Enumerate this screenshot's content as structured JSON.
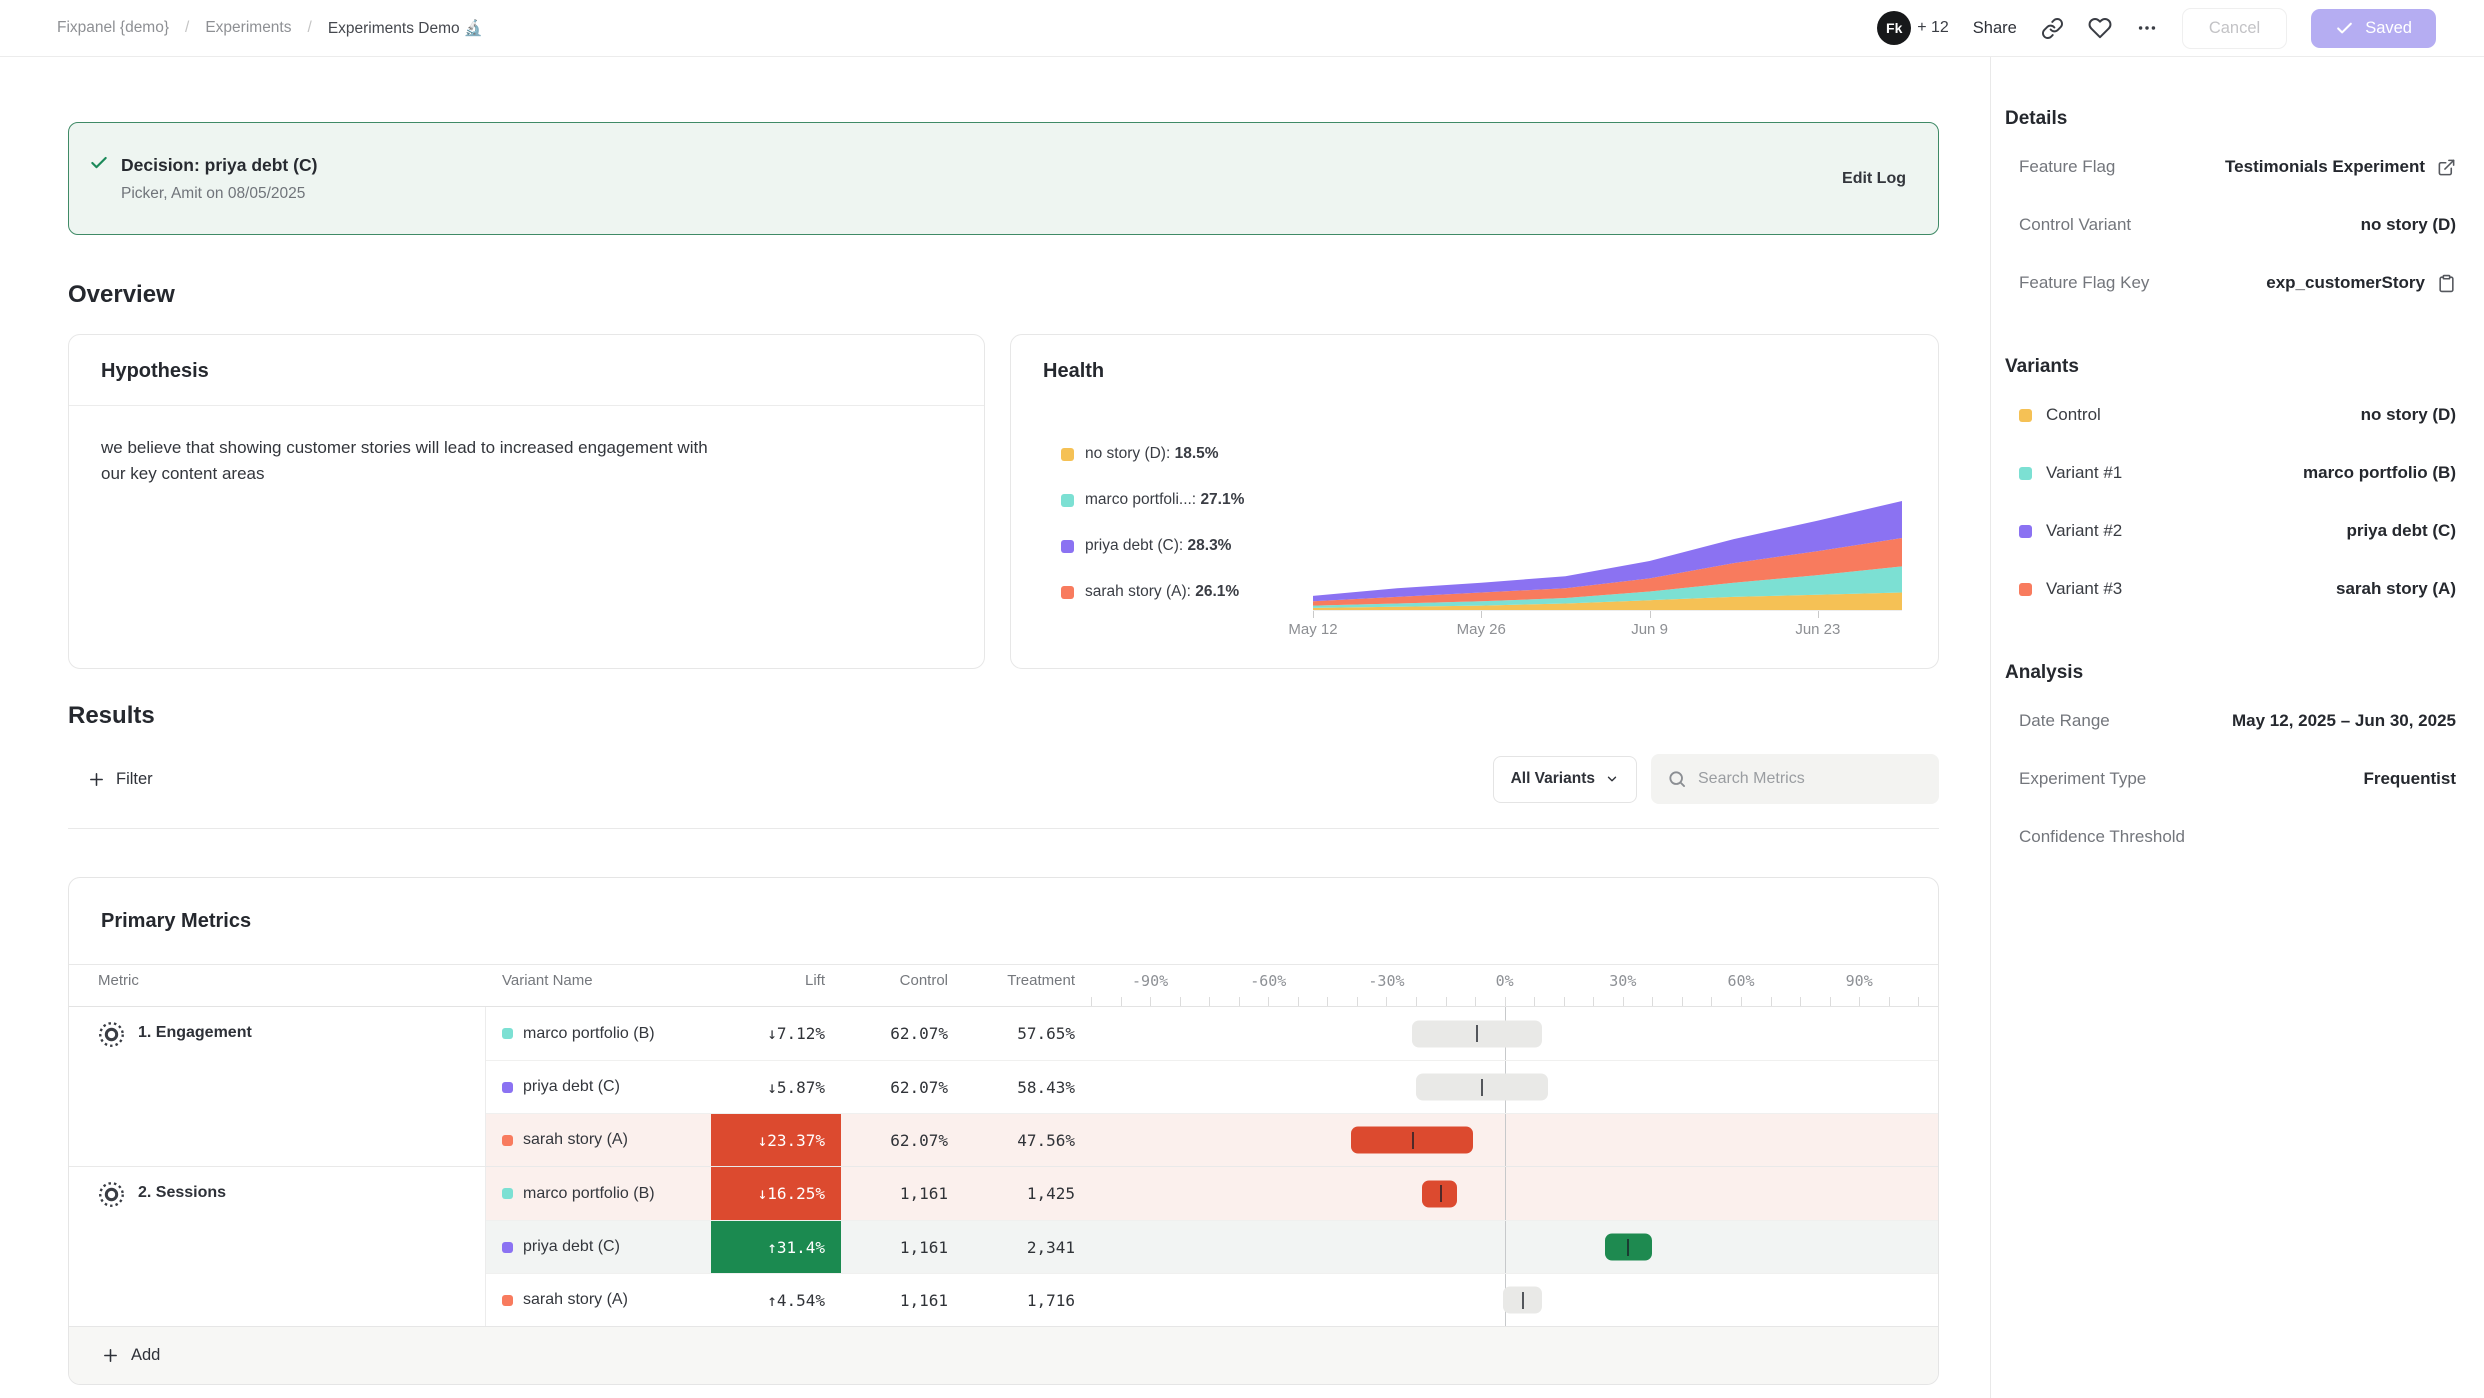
{
  "topbar": {
    "breadcrumb": [
      "Fixpanel {demo}",
      "Experiments",
      "Experiments Demo 🔬"
    ],
    "avatar_label": "Fk",
    "collaborators": "+ 12",
    "share_label": "Share",
    "cancel_label": "Cancel",
    "saved_label": "Saved"
  },
  "banner": {
    "title": "Decision: priya debt (C)",
    "subtitle": "Picker, Amit on 08/05/2025",
    "action": "Edit Log"
  },
  "overview": {
    "heading": "Overview"
  },
  "hypothesis_card": {
    "title": "Hypothesis",
    "body": "we believe that showing customer stories will lead to increased engagement with our key content areas"
  },
  "health_card": {
    "title": "Health"
  },
  "results": {
    "heading": "Results",
    "filter_label": "Filter",
    "variants_dropdown": "All Variants",
    "search_placeholder": "Search Metrics"
  },
  "primary_metrics_card": {
    "title": "Primary Metrics",
    "columns": {
      "metric": "Metric",
      "variant": "Variant Name",
      "lift": "Lift",
      "control": "Control",
      "treatment": "Treatment"
    },
    "add_label": "Add"
  },
  "sidebar": {
    "details": {
      "heading": "Details",
      "rows": [
        {
          "label": "Feature Flag",
          "value": "Testimonials Experiment",
          "icon": "external-link"
        },
        {
          "label": "Control Variant",
          "value": "no story (D)"
        },
        {
          "label": "Feature Flag Key",
          "value": "exp_customerStory",
          "icon": "copy"
        }
      ]
    },
    "variants": {
      "heading": "Variants",
      "rows": [
        {
          "label": "Control",
          "value": "no story (D)",
          "color": "#F5C155"
        },
        {
          "label": "Variant #1",
          "value": "marco portfolio (B)",
          "color": "#7CE0D3"
        },
        {
          "label": "Variant #2",
          "value": "priya debt (C)",
          "color": "#8B72F2"
        },
        {
          "label": "Variant #3",
          "value": "sarah story (A)",
          "color": "#F87B5E"
        }
      ]
    },
    "analysis": {
      "heading": "Analysis",
      "rows": [
        {
          "label": "Date Range",
          "value": "May 12, 2025 – Jun 30, 2025"
        },
        {
          "label": "Experiment Type",
          "value": "Frequentist"
        },
        {
          "label": "Confidence Threshold",
          "value": ""
        }
      ]
    }
  },
  "colors": {
    "saved_button": "#B5ADF2",
    "banner_border": "#3F8A66",
    "negative": "#DC4A2F",
    "positive": "#1B8A50",
    "negative_row_bg": "#FBF0ED",
    "positive_row_bg": "#F2F4F3",
    "neutral_bar": "#E9E9E7"
  },
  "chart_data": [
    {
      "type": "area",
      "stacked": true,
      "title": "Health — variant exposure over time",
      "grid": false,
      "legend_position": "left",
      "x": [
        "May 12",
        "May 19",
        "May 26",
        "Jun 2",
        "Jun 9",
        "Jun 16",
        "Jun 23",
        "Jun 30"
      ],
      "x_tick_labels": [
        "May 12",
        "May 26",
        "Jun 9",
        "Jun 23"
      ],
      "ylim": [
        0,
        100
      ],
      "series": [
        {
          "name": "no story (D)",
          "legend": "no story (D): 18.5%",
          "share": "18.5%",
          "color": "#F5C155",
          "values": [
            2,
            3,
            4,
            6,
            9,
            12,
            14,
            16
          ]
        },
        {
          "name": "marco portfolio (B)",
          "legend": "marco portfoli...: 27.1%",
          "share": "27.1%",
          "color": "#7CE0D3",
          "values": [
            2,
            3,
            4,
            5,
            8,
            13,
            18,
            24
          ]
        },
        {
          "name": "sarah story (A)",
          "legend": "sarah story (A): 26.1%",
          "share": "26.1%",
          "color": "#F87B5E",
          "values": [
            4,
            6,
            8,
            9,
            12,
            18,
            22,
            26
          ]
        },
        {
          "name": "priya debt (C)",
          "legend": "priya debt (C): 28.3%",
          "share": "28.3%",
          "color": "#8B72F2",
          "values": [
            5,
            8,
            9,
            11,
            16,
            22,
            28,
            34
          ]
        }
      ],
      "legend_order": [
        "no story (D)",
        "marco portfolio (B)",
        "priya debt (C)",
        "sarah story (A)"
      ]
    },
    {
      "type": "table",
      "title": "Primary Metrics",
      "axis": {
        "tick_labels": [
          "-90%",
          "-60%",
          "-30%",
          "0%",
          "30%",
          "60%",
          "90%"
        ],
        "tick_values": [
          -90,
          -60,
          -30,
          0,
          30,
          60,
          90
        ],
        "range": [
          -105,
          110
        ],
        "minor_step": 7.5
      },
      "metrics": [
        {
          "name": "1. Engagement",
          "rows": [
            {
              "variant": "marco portfolio (B)",
              "color": "#7CE0D3",
              "lift": "↓7.12%",
              "sentiment": "neutral",
              "control": "62.07%",
              "treatment": "57.65%",
              "ci": [
                -23.5,
                9.5
              ],
              "point": -7.12
            },
            {
              "variant": "priya debt (C)",
              "color": "#8B72F2",
              "lift": "↓5.87%",
              "sentiment": "neutral",
              "control": "62.07%",
              "treatment": "58.43%",
              "ci": [
                -22.5,
                11
              ],
              "point": -5.87
            },
            {
              "variant": "sarah story (A)",
              "color": "#F87B5E",
              "lift": "↓23.37%",
              "sentiment": "negative",
              "control": "62.07%",
              "treatment": "47.56%",
              "ci": [
                -39,
                -8
              ],
              "point": -23.37
            }
          ]
        },
        {
          "name": "2. Sessions",
          "rows": [
            {
              "variant": "marco portfolio (B)",
              "color": "#7CE0D3",
              "lift": "↓16.25%",
              "sentiment": "negative",
              "control": "1,161",
              "treatment": "1,425",
              "ci": [
                -21,
                -12
              ],
              "point": -16.25
            },
            {
              "variant": "priya debt (C)",
              "color": "#8B72F2",
              "lift": "↑31.4%",
              "sentiment": "positive",
              "control": "1,161",
              "treatment": "2,341",
              "ci": [
                25.5,
                37.5
              ],
              "point": 31.4
            },
            {
              "variant": "sarah story (A)",
              "color": "#F87B5E",
              "lift": "↑4.54%",
              "sentiment": "neutral",
              "control": "1,161",
              "treatment": "1,716",
              "ci": [
                -0.5,
                9.5
              ],
              "point": 4.54
            }
          ]
        }
      ]
    }
  ]
}
